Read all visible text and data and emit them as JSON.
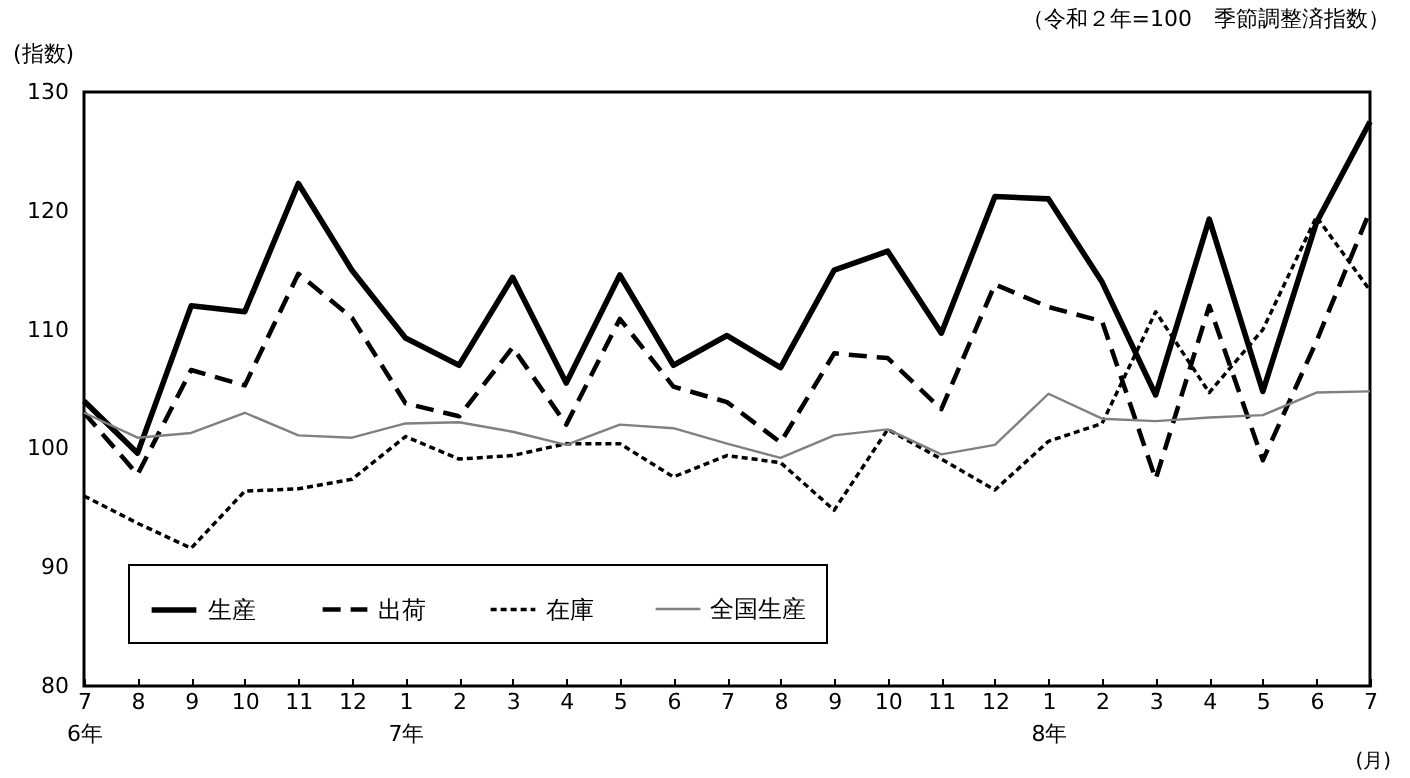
{
  "chart_data": {
    "type": "line",
    "title": "（令和２年=100　季節調整済指数）",
    "ylabel": "(指数)",
    "xlabel": "(月)",
    "categories": [
      "7\n6年",
      "8",
      "9",
      "10",
      "11",
      "12",
      "1\n7年",
      "2",
      "3",
      "4",
      "5",
      "6",
      "7",
      "8",
      "9",
      "10",
      "11",
      "12",
      "1\n8年",
      "2",
      "3",
      "4",
      "5",
      "6",
      "7"
    ],
    "series": [
      {
        "name": "生産",
        "color": "#000000",
        "line_style": "solid",
        "values": [
          104,
          99.6,
          112,
          111.5,
          122.3,
          115,
          109.3,
          107,
          114.4,
          105.5,
          114.6,
          107,
          109.5,
          106.8,
          115,
          116.6,
          109.7,
          121.2,
          121,
          114,
          104.5,
          119.3,
          104.8,
          119,
          127.5
        ]
      },
      {
        "name": "出荷",
        "color": "#000000",
        "line_style": "dashed",
        "values": [
          103,
          97.8,
          106.6,
          105.3,
          114.7,
          111,
          103.8,
          102.7,
          108.5,
          102,
          110.9,
          105.2,
          103.9,
          100.5,
          108,
          107.6,
          103.3,
          113.8,
          111.9,
          110.7,
          97.4,
          112,
          99,
          109,
          120
        ]
      },
      {
        "name": "在庫",
        "color": "#000000",
        "line_style": "dotted",
        "values": [
          96,
          93.7,
          91.6,
          96.4,
          96.6,
          97.4,
          101,
          99.1,
          99.4,
          100.4,
          100.4,
          97.6,
          99.4,
          98.8,
          94.8,
          101.6,
          99.1,
          96.5,
          100.6,
          102.1,
          111.5,
          104.7,
          110,
          119.5,
          113.3
        ]
      },
      {
        "name": "全国生産",
        "color": "#808080",
        "line_style": "solid",
        "values": [
          103,
          100.9,
          101.3,
          103.0,
          101.1,
          100.9,
          102.1,
          102.2,
          101.4,
          100.3,
          102,
          101.7,
          100.4,
          99.2,
          101.1,
          101.6,
          99.5,
          100.3,
          104.6,
          102.5,
          102.3,
          102.6,
          102.8,
          104.7,
          104.8
        ]
      }
    ],
    "ylim": [
      80,
      130
    ],
    "yticks": [
      80,
      90,
      100,
      110,
      120,
      130
    ],
    "grid": false,
    "legend": "bottom left",
    "marker": "none"
  }
}
